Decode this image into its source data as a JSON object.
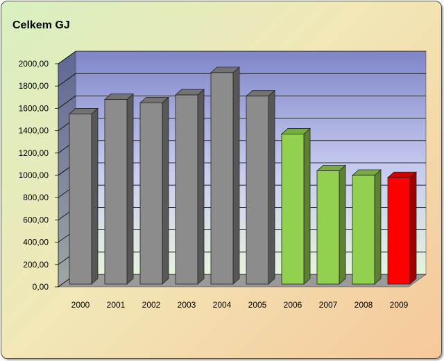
{
  "chart_data": {
    "type": "bar",
    "title": "Celkem GJ",
    "categories": [
      "2000",
      "2001",
      "2002",
      "2003",
      "2004",
      "2005",
      "2006",
      "2007",
      "2008",
      "2009"
    ],
    "values": [
      1550,
      1680,
      1650,
      1720,
      1920,
      1710,
      1370,
      1040,
      1000,
      980
    ],
    "bar_colors": [
      "#8c8c8c",
      "#8c8c8c",
      "#8c8c8c",
      "#8c8c8c",
      "#8c8c8c",
      "#8c8c8c",
      "#92d050",
      "#92d050",
      "#92d050",
      "#ff0000"
    ],
    "ylim": [
      0,
      2000
    ],
    "yticks": [
      "0,00",
      "200,00",
      "400,00",
      "600,00",
      "800,00",
      "1000,00",
      "1200,00",
      "1400,00",
      "1600,00",
      "1800,00",
      "2000,00"
    ],
    "xlabel": "",
    "ylabel": "",
    "grid": true,
    "legend": "none",
    "style": "3d-clustered-column"
  }
}
